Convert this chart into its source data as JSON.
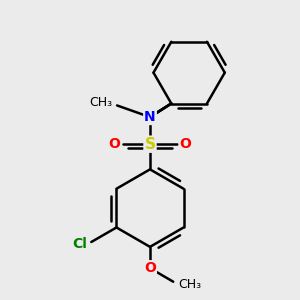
{
  "background_color": "#ebebeb",
  "bond_color": "#000000",
  "N_color": "#0000ff",
  "S_color": "#cccc00",
  "O_color": "#ff0000",
  "Cl_color": "#008000",
  "bond_lw": 1.8,
  "ring_r": 1.0,
  "figsize": [
    3.0,
    3.0
  ],
  "dpi": 100,
  "xlim": [
    -3.5,
    3.5
  ],
  "ylim": [
    -3.8,
    3.8
  ]
}
